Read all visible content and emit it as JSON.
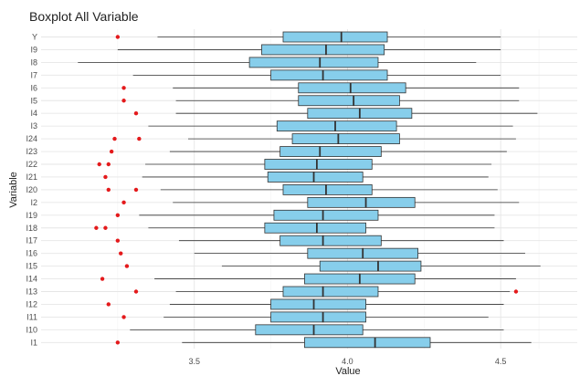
{
  "chart_data": {
    "type": "boxplot",
    "title": "Boxplot All Variable",
    "xlabel": "Value",
    "ylabel": "Variable",
    "xlim": [
      3.0,
      4.75
    ],
    "x_ticks": [
      3.5,
      4.0,
      4.5
    ],
    "x_tick_labels": [
      "3.5",
      "4.0",
      "4.5"
    ],
    "grid": true,
    "colors": {
      "box_fill": "#87CEEB",
      "box_stroke": "#333333",
      "outlier": "#e41a1c",
      "grid_major": "#e6e6e6",
      "grid_minor": "#f3f3f3",
      "text": "#222222"
    },
    "categories": [
      "Y",
      "I9",
      "I8",
      "I7",
      "I6",
      "I5",
      "I4",
      "I3",
      "I24",
      "I23",
      "I22",
      "I21",
      "I20",
      "I2",
      "I19",
      "I18",
      "I17",
      "I16",
      "I15",
      "I14",
      "I13",
      "I12",
      "I11",
      "I10",
      "I1"
    ],
    "series": [
      {
        "variable": "Y",
        "whisker_low": 3.38,
        "q1": 3.79,
        "median": 3.98,
        "q3": 4.13,
        "whisker_high": 4.5,
        "outliers": [
          3.25
        ]
      },
      {
        "variable": "I9",
        "whisker_low": 3.25,
        "q1": 3.72,
        "median": 3.93,
        "q3": 4.12,
        "whisker_high": 4.5,
        "outliers": []
      },
      {
        "variable": "I8",
        "whisker_low": 3.12,
        "q1": 3.68,
        "median": 3.91,
        "q3": 4.1,
        "whisker_high": 4.42,
        "outliers": []
      },
      {
        "variable": "I7",
        "whisker_low": 3.3,
        "q1": 3.75,
        "median": 3.92,
        "q3": 4.13,
        "whisker_high": 4.5,
        "outliers": []
      },
      {
        "variable": "I6",
        "whisker_low": 3.43,
        "q1": 3.84,
        "median": 4.01,
        "q3": 4.19,
        "whisker_high": 4.56,
        "outliers": [
          3.27
        ]
      },
      {
        "variable": "I5",
        "whisker_low": 3.44,
        "q1": 3.84,
        "median": 4.02,
        "q3": 4.17,
        "whisker_high": 4.56,
        "outliers": [
          3.27
        ]
      },
      {
        "variable": "I4",
        "whisker_low": 3.44,
        "q1": 3.87,
        "median": 4.04,
        "q3": 4.21,
        "whisker_high": 4.62,
        "outliers": [
          3.31
        ]
      },
      {
        "variable": "I3",
        "whisker_low": 3.35,
        "q1": 3.77,
        "median": 3.96,
        "q3": 4.16,
        "whisker_high": 4.54,
        "outliers": []
      },
      {
        "variable": "I24",
        "whisker_low": 3.48,
        "q1": 3.82,
        "median": 3.97,
        "q3": 4.17,
        "whisker_high": 4.55,
        "outliers": [
          3.24,
          3.32
        ]
      },
      {
        "variable": "I23",
        "whisker_low": 3.42,
        "q1": 3.78,
        "median": 3.91,
        "q3": 4.11,
        "whisker_high": 4.52,
        "outliers": [
          3.23
        ]
      },
      {
        "variable": "I22",
        "whisker_low": 3.34,
        "q1": 3.73,
        "median": 3.9,
        "q3": 4.08,
        "whisker_high": 4.47,
        "outliers": [
          3.19,
          3.22
        ]
      },
      {
        "variable": "I21",
        "whisker_low": 3.33,
        "q1": 3.74,
        "median": 3.89,
        "q3": 4.05,
        "whisker_high": 4.46,
        "outliers": [
          3.21
        ]
      },
      {
        "variable": "I20",
        "whisker_low": 3.39,
        "q1": 3.79,
        "median": 3.93,
        "q3": 4.08,
        "whisker_high": 4.49,
        "outliers": [
          3.22,
          3.31
        ]
      },
      {
        "variable": "I2",
        "whisker_low": 3.43,
        "q1": 3.87,
        "median": 4.06,
        "q3": 4.22,
        "whisker_high": 4.56,
        "outliers": [
          3.27
        ]
      },
      {
        "variable": "I19",
        "whisker_low": 3.32,
        "q1": 3.76,
        "median": 3.92,
        "q3": 4.1,
        "whisker_high": 4.48,
        "outliers": [
          3.25
        ]
      },
      {
        "variable": "I18",
        "whisker_low": 3.35,
        "q1": 3.73,
        "median": 3.9,
        "q3": 4.06,
        "whisker_high": 4.48,
        "outliers": [
          3.18,
          3.21
        ]
      },
      {
        "variable": "I17",
        "whisker_low": 3.45,
        "q1": 3.78,
        "median": 3.92,
        "q3": 4.11,
        "whisker_high": 4.51,
        "outliers": [
          3.25
        ]
      },
      {
        "variable": "I16",
        "whisker_low": 3.5,
        "q1": 3.87,
        "median": 4.05,
        "q3": 4.23,
        "whisker_high": 4.58,
        "outliers": [
          3.26
        ]
      },
      {
        "variable": "I15",
        "whisker_low": 3.59,
        "q1": 3.91,
        "median": 4.1,
        "q3": 4.24,
        "whisker_high": 4.63,
        "outliers": [
          3.28
        ]
      },
      {
        "variable": "I14",
        "whisker_low": 3.37,
        "q1": 3.86,
        "median": 4.04,
        "q3": 4.22,
        "whisker_high": 4.55,
        "outliers": [
          3.2
        ]
      },
      {
        "variable": "I13",
        "whisker_low": 3.44,
        "q1": 3.79,
        "median": 3.92,
        "q3": 4.1,
        "whisker_high": 4.53,
        "outliers": [
          3.31,
          4.55
        ]
      },
      {
        "variable": "I12",
        "whisker_low": 3.42,
        "q1": 3.75,
        "median": 3.89,
        "q3": 4.06,
        "whisker_high": 4.51,
        "outliers": [
          3.22
        ]
      },
      {
        "variable": "I11",
        "whisker_low": 3.4,
        "q1": 3.75,
        "median": 3.92,
        "q3": 4.06,
        "whisker_high": 4.46,
        "outliers": [
          3.27
        ]
      },
      {
        "variable": "I10",
        "whisker_low": 3.29,
        "q1": 3.7,
        "median": 3.89,
        "q3": 4.05,
        "whisker_high": 4.51,
        "outliers": []
      },
      {
        "variable": "I1",
        "whisker_low": 3.46,
        "q1": 3.86,
        "median": 4.09,
        "q3": 4.27,
        "whisker_high": 4.6,
        "outliers": [
          3.25
        ]
      }
    ]
  }
}
